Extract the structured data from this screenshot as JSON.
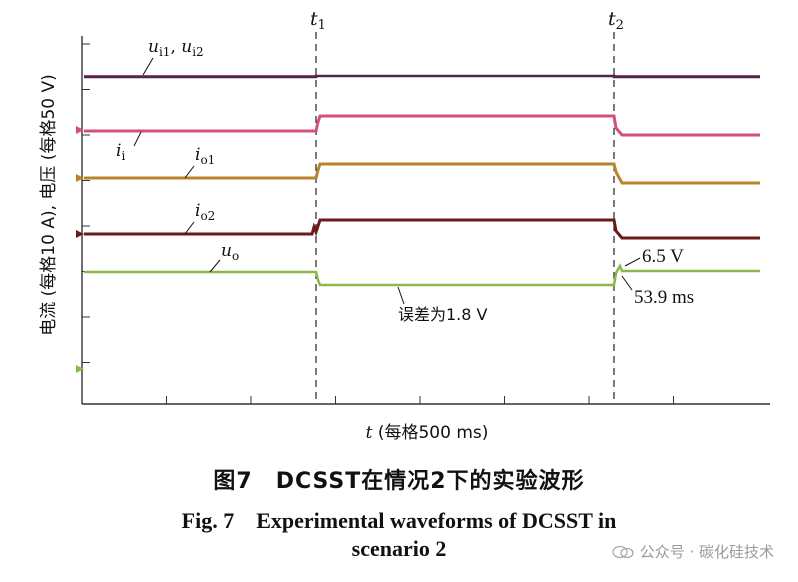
{
  "chart_data": {
    "type": "line",
    "ylabel": "电流 (每格10 A), 电压 (每格50 V)",
    "xlabel_prefix": "t",
    "xlabel_rest": " (每格500 ms)",
    "time_markers": [
      {
        "label": "t",
        "sub": "1"
      },
      {
        "label": "t",
        "sub": "2"
      }
    ],
    "series": [
      {
        "name": "u_i1, u_i2",
        "label_main": "u",
        "label_sub1": "i1",
        "label_sep": ", ",
        "label_main2": "u",
        "label_sub2": "i2",
        "color": "#4a2a4a",
        "color2": "#c24b7a"
      },
      {
        "name": "i_i",
        "label_main": "i",
        "label_sub1": "i",
        "color": "#d4507a"
      },
      {
        "name": "i_o1",
        "label_main": "i",
        "label_sub1": "o1",
        "color": "#b8842a"
      },
      {
        "name": "i_o2",
        "label_main": "i",
        "label_sub1": "o2",
        "color": "#6a1a1a"
      },
      {
        "name": "u_o",
        "label_main": "u",
        "label_sub1": "o",
        "color": "#8ab84a"
      }
    ],
    "annotations": {
      "error": "误差为1.8 V",
      "overshoot": "6.5 V",
      "settle": "53.9 ms"
    }
  },
  "caption": {
    "chinese": "图7　DCSST在情况2下的实验波形",
    "english_line1": "Fig. 7　Experimental waveforms of DCSST in",
    "english_line2": "scenario 2"
  },
  "watermark": "公众号 · 碳化硅技术"
}
